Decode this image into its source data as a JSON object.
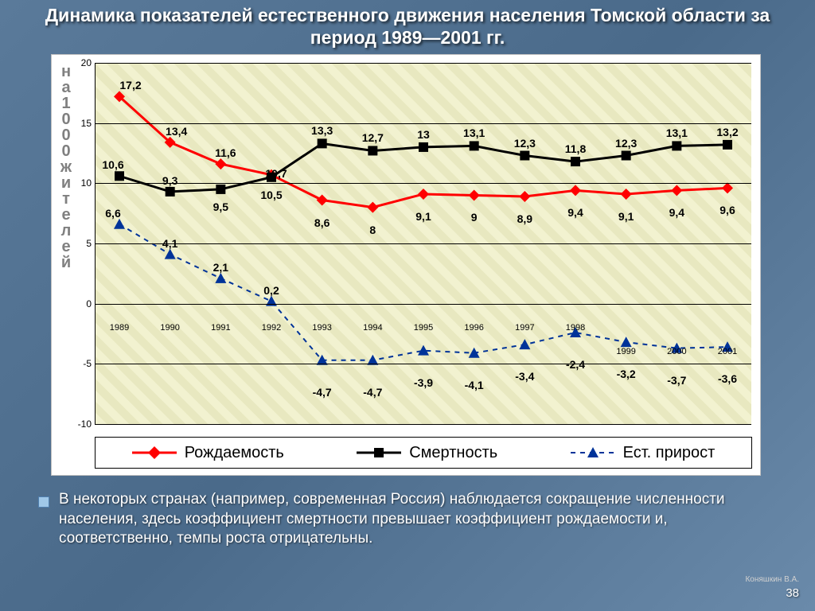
{
  "title": "Динамика показателей естественного движения населения Томской области за период 1989—2001 гг.",
  "chart": {
    "type": "line",
    "years": [
      "1989",
      "1990",
      "1991",
      "1992",
      "1993",
      "1994",
      "1995",
      "1996",
      "1997",
      "1998",
      "1999",
      "2000",
      "2001"
    ],
    "years_y_offset": [
      0,
      0,
      0,
      0,
      0,
      0,
      0,
      0,
      0,
      0,
      30,
      30,
      30
    ],
    "ylim": [
      -10,
      20
    ],
    "ytick_step": 5,
    "yticks": [
      -10,
      -5,
      0,
      5,
      10,
      15,
      20
    ],
    "plot_bg": "#f0f0d0",
    "grid_color": "#000000",
    "ylabel_chars": [
      "н",
      "а",
      "1",
      "0",
      "0",
      "0",
      "ж",
      "и",
      "т",
      "е",
      "л",
      "е",
      "й"
    ],
    "series": [
      {
        "name": "Рождаемость",
        "color": "#ff0000",
        "marker": "diamond",
        "marker_color": "#ff0000",
        "line_width": 3,
        "dash": "none",
        "values": [
          17.2,
          13.4,
          11.6,
          10.7,
          8.6,
          8.0,
          9.1,
          9.0,
          8.9,
          9.4,
          9.1,
          9.4,
          9.6
        ],
        "label_dy": [
          -14,
          -14,
          -14,
          -2,
          28,
          28,
          28,
          28,
          28,
          28,
          28,
          28,
          28
        ],
        "label_dx": [
          14,
          8,
          6,
          6,
          0,
          0,
          0,
          0,
          0,
          0,
          0,
          0,
          0
        ],
        "labels": [
          "17,2",
          "13,4",
          "11,6",
          "10,7",
          "8,6",
          "8",
          "9,1",
          "9",
          "8,9",
          "9,4",
          "9,1",
          "9,4",
          "9,6"
        ]
      },
      {
        "name": "Смертность",
        "color": "#000000",
        "marker": "square",
        "marker_color": "#000000",
        "line_width": 3,
        "dash": "none",
        "values": [
          10.6,
          9.3,
          9.5,
          10.5,
          13.3,
          12.7,
          13.0,
          13.1,
          12.3,
          11.8,
          12.3,
          13.1,
          13.2
        ],
        "label_dy": [
          -14,
          -14,
          22,
          22,
          -16,
          -16,
          -16,
          -16,
          -16,
          -16,
          -16,
          -16,
          -16
        ],
        "label_dx": [
          -8,
          0,
          0,
          0,
          0,
          0,
          0,
          0,
          0,
          0,
          0,
          0,
          0
        ],
        "labels": [
          "10,6",
          "9,3",
          "9,5",
          "10,5",
          "13,3",
          "12,7",
          "13",
          "13,1",
          "12,3",
          "11,8",
          "12,3",
          "13,1",
          "13,2"
        ]
      },
      {
        "name": "Ест. прирост",
        "color": "#003399",
        "marker": "triangle",
        "marker_color": "#003399",
        "line_width": 2,
        "dash": "6,6",
        "values": [
          6.6,
          4.1,
          2.1,
          0.2,
          -4.7,
          -4.7,
          -3.9,
          -4.1,
          -3.4,
          -2.4,
          -3.2,
          -3.7,
          -3.6
        ],
        "label_dy": [
          -14,
          -14,
          -14,
          -14,
          40,
          40,
          40,
          40,
          40,
          40,
          40,
          40,
          40
        ],
        "label_dx": [
          -8,
          0,
          0,
          0,
          0,
          0,
          0,
          0,
          0,
          0,
          0,
          0,
          0
        ],
        "labels": [
          "6,6",
          "4,1",
          "2,1",
          "0,2",
          "-4,7",
          "-4,7",
          "-3,9",
          "-4,1",
          "-3,4",
          "-2,4",
          "-3,2",
          "-3,7",
          "-3,6"
        ]
      }
    ]
  },
  "legend": {
    "items": [
      "Рождаемость",
      "Смертность",
      "Ест. прирост"
    ]
  },
  "body_text": "В некоторых странах (например, современная Россия) наблюдается сокращение численности населения, здесь коэффициент смертности превышает коэффициент рождаемости и, соответственно, темпы роста отрицательны.",
  "attribution": "Коняшкин В.А.",
  "page_number": "38",
  "colors": {
    "slide_bg": "#5a7a9a",
    "title_color": "#ffffff",
    "body_text_color": "#ffffff"
  },
  "typography": {
    "title_fontsize": 23,
    "title_weight": "bold",
    "body_fontsize": 19,
    "legend_fontsize": 20,
    "datalabel_fontsize": 14
  }
}
